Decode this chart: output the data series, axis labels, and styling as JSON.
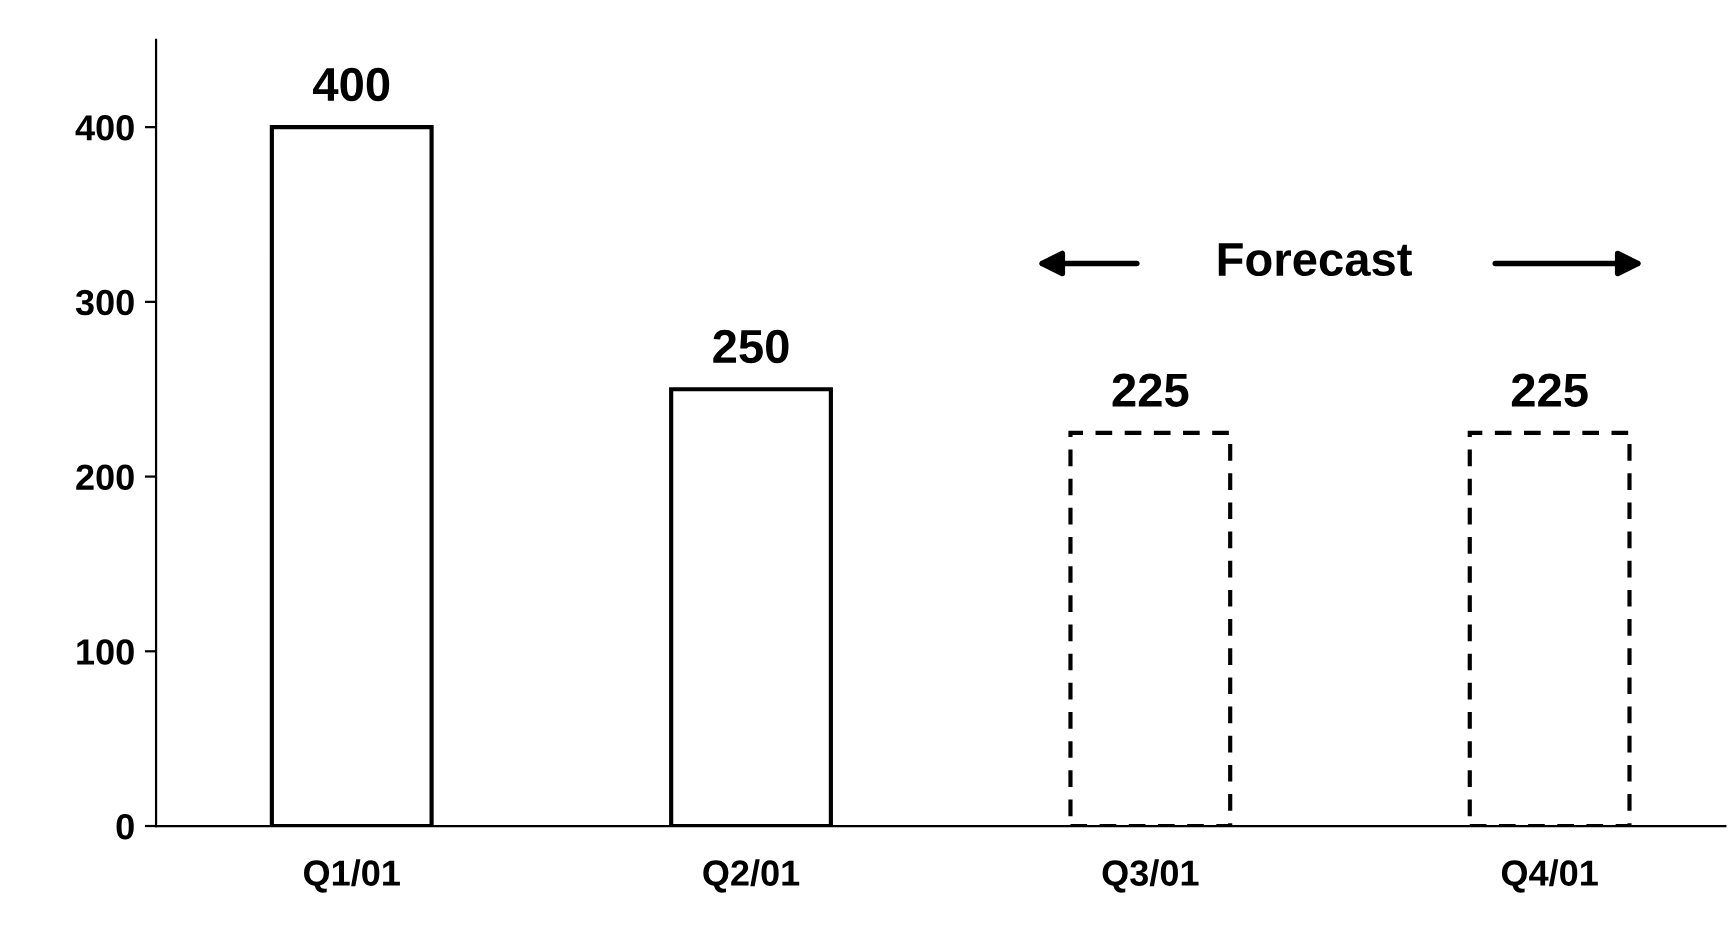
{
  "chart_data": {
    "type": "bar",
    "categories": [
      "Q1/01",
      "Q2/01",
      "Q3/01",
      "Q4/01"
    ],
    "series": [
      {
        "color": "#ffffff",
        "line_style": "solid",
        "values": [
          400,
          250,
          null,
          null
        ]
      },
      {
        "color": "#ffffff",
        "line_style": "dashed",
        "values": [
          null,
          null,
          225,
          225
        ]
      }
    ],
    "ylim": [
      0,
      450
    ],
    "yticks": [
      0,
      100,
      200,
      300,
      400
    ],
    "data_labels": true,
    "grid": false,
    "legend": false,
    "annotations": [
      "Forecast"
    ]
  }
}
